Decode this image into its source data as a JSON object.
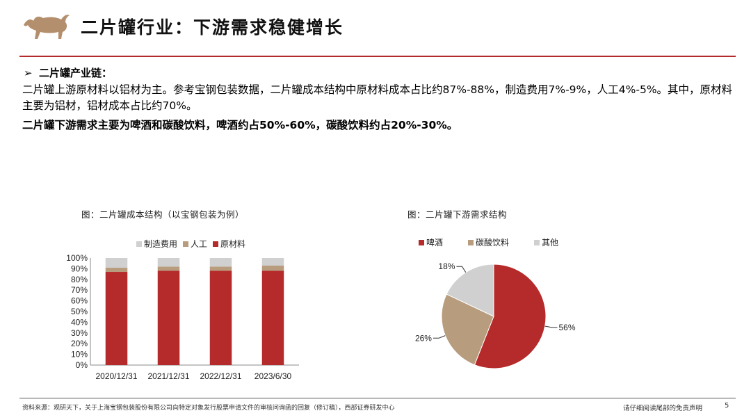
{
  "header": {
    "title": "二片罐行业：下游需求稳健增长"
  },
  "section": {
    "bullet": "➢",
    "heading": "二片罐产业链："
  },
  "paragraphs": {
    "p1": "二片罐上游原材料以铝材为主。参考宝钢包装数据，二片罐成本结构中原材料成本占比约87%-88%，制造费用7%-9%，人工4%-5%。其中，原材料主要为铝材，铝材成本占比约70%。",
    "p2": "二片罐下游需求主要为啤酒和碳酸饮料，啤酒约占50%-60%，碳酸饮料约占20%-30%。"
  },
  "colors": {
    "red": "#b52a2a",
    "tan": "#b89c7e",
    "gray": "#d0d0d0",
    "brand": "#b48f6d"
  },
  "chart_data": [
    {
      "type": "bar",
      "stacked": true,
      "title": "图：二片罐成本结构（以宝钢包装为例）",
      "categories": [
        "2020/12/31",
        "2021/12/31",
        "2022/12/31",
        "2023/6/30"
      ],
      "series": [
        {
          "name": "原材料",
          "values": [
            0.87,
            0.88,
            0.88,
            0.88
          ],
          "color": "#b52a2a"
        },
        {
          "name": "人工",
          "values": [
            0.04,
            0.04,
            0.04,
            0.05
          ],
          "color": "#b89c7e"
        },
        {
          "name": "制造费用",
          "values": [
            0.09,
            0.08,
            0.08,
            0.07
          ],
          "color": "#d0d0d0"
        }
      ],
      "legend_order": [
        "制造费用",
        "人工",
        "原材料"
      ],
      "yticks": [
        "0%",
        "10%",
        "20%",
        "30%",
        "40%",
        "50%",
        "60%",
        "70%",
        "80%",
        "90%",
        "100%"
      ],
      "ylim": [
        0,
        1
      ],
      "legend": "top"
    },
    {
      "type": "pie",
      "title": "图：二片罐下游需求结构",
      "slices": [
        {
          "name": "啤酒",
          "value": 56,
          "label": "56%",
          "color": "#b52a2a"
        },
        {
          "name": "碳酸饮料",
          "value": 26,
          "label": "26%",
          "color": "#b89c7e"
        },
        {
          "name": "其他",
          "value": 18,
          "label": "18%",
          "color": "#d0d0d0"
        }
      ],
      "legend": "top"
    }
  ],
  "footer": {
    "source": "资料来源：观研天下，关于上海宝钢包装股份有限公司向特定对象发行股票申请文件的审核问询函的回复（修订稿），西部证券研发中心",
    "disclaimer": "请仔细阅读尾部的免责声明",
    "page": "5"
  }
}
